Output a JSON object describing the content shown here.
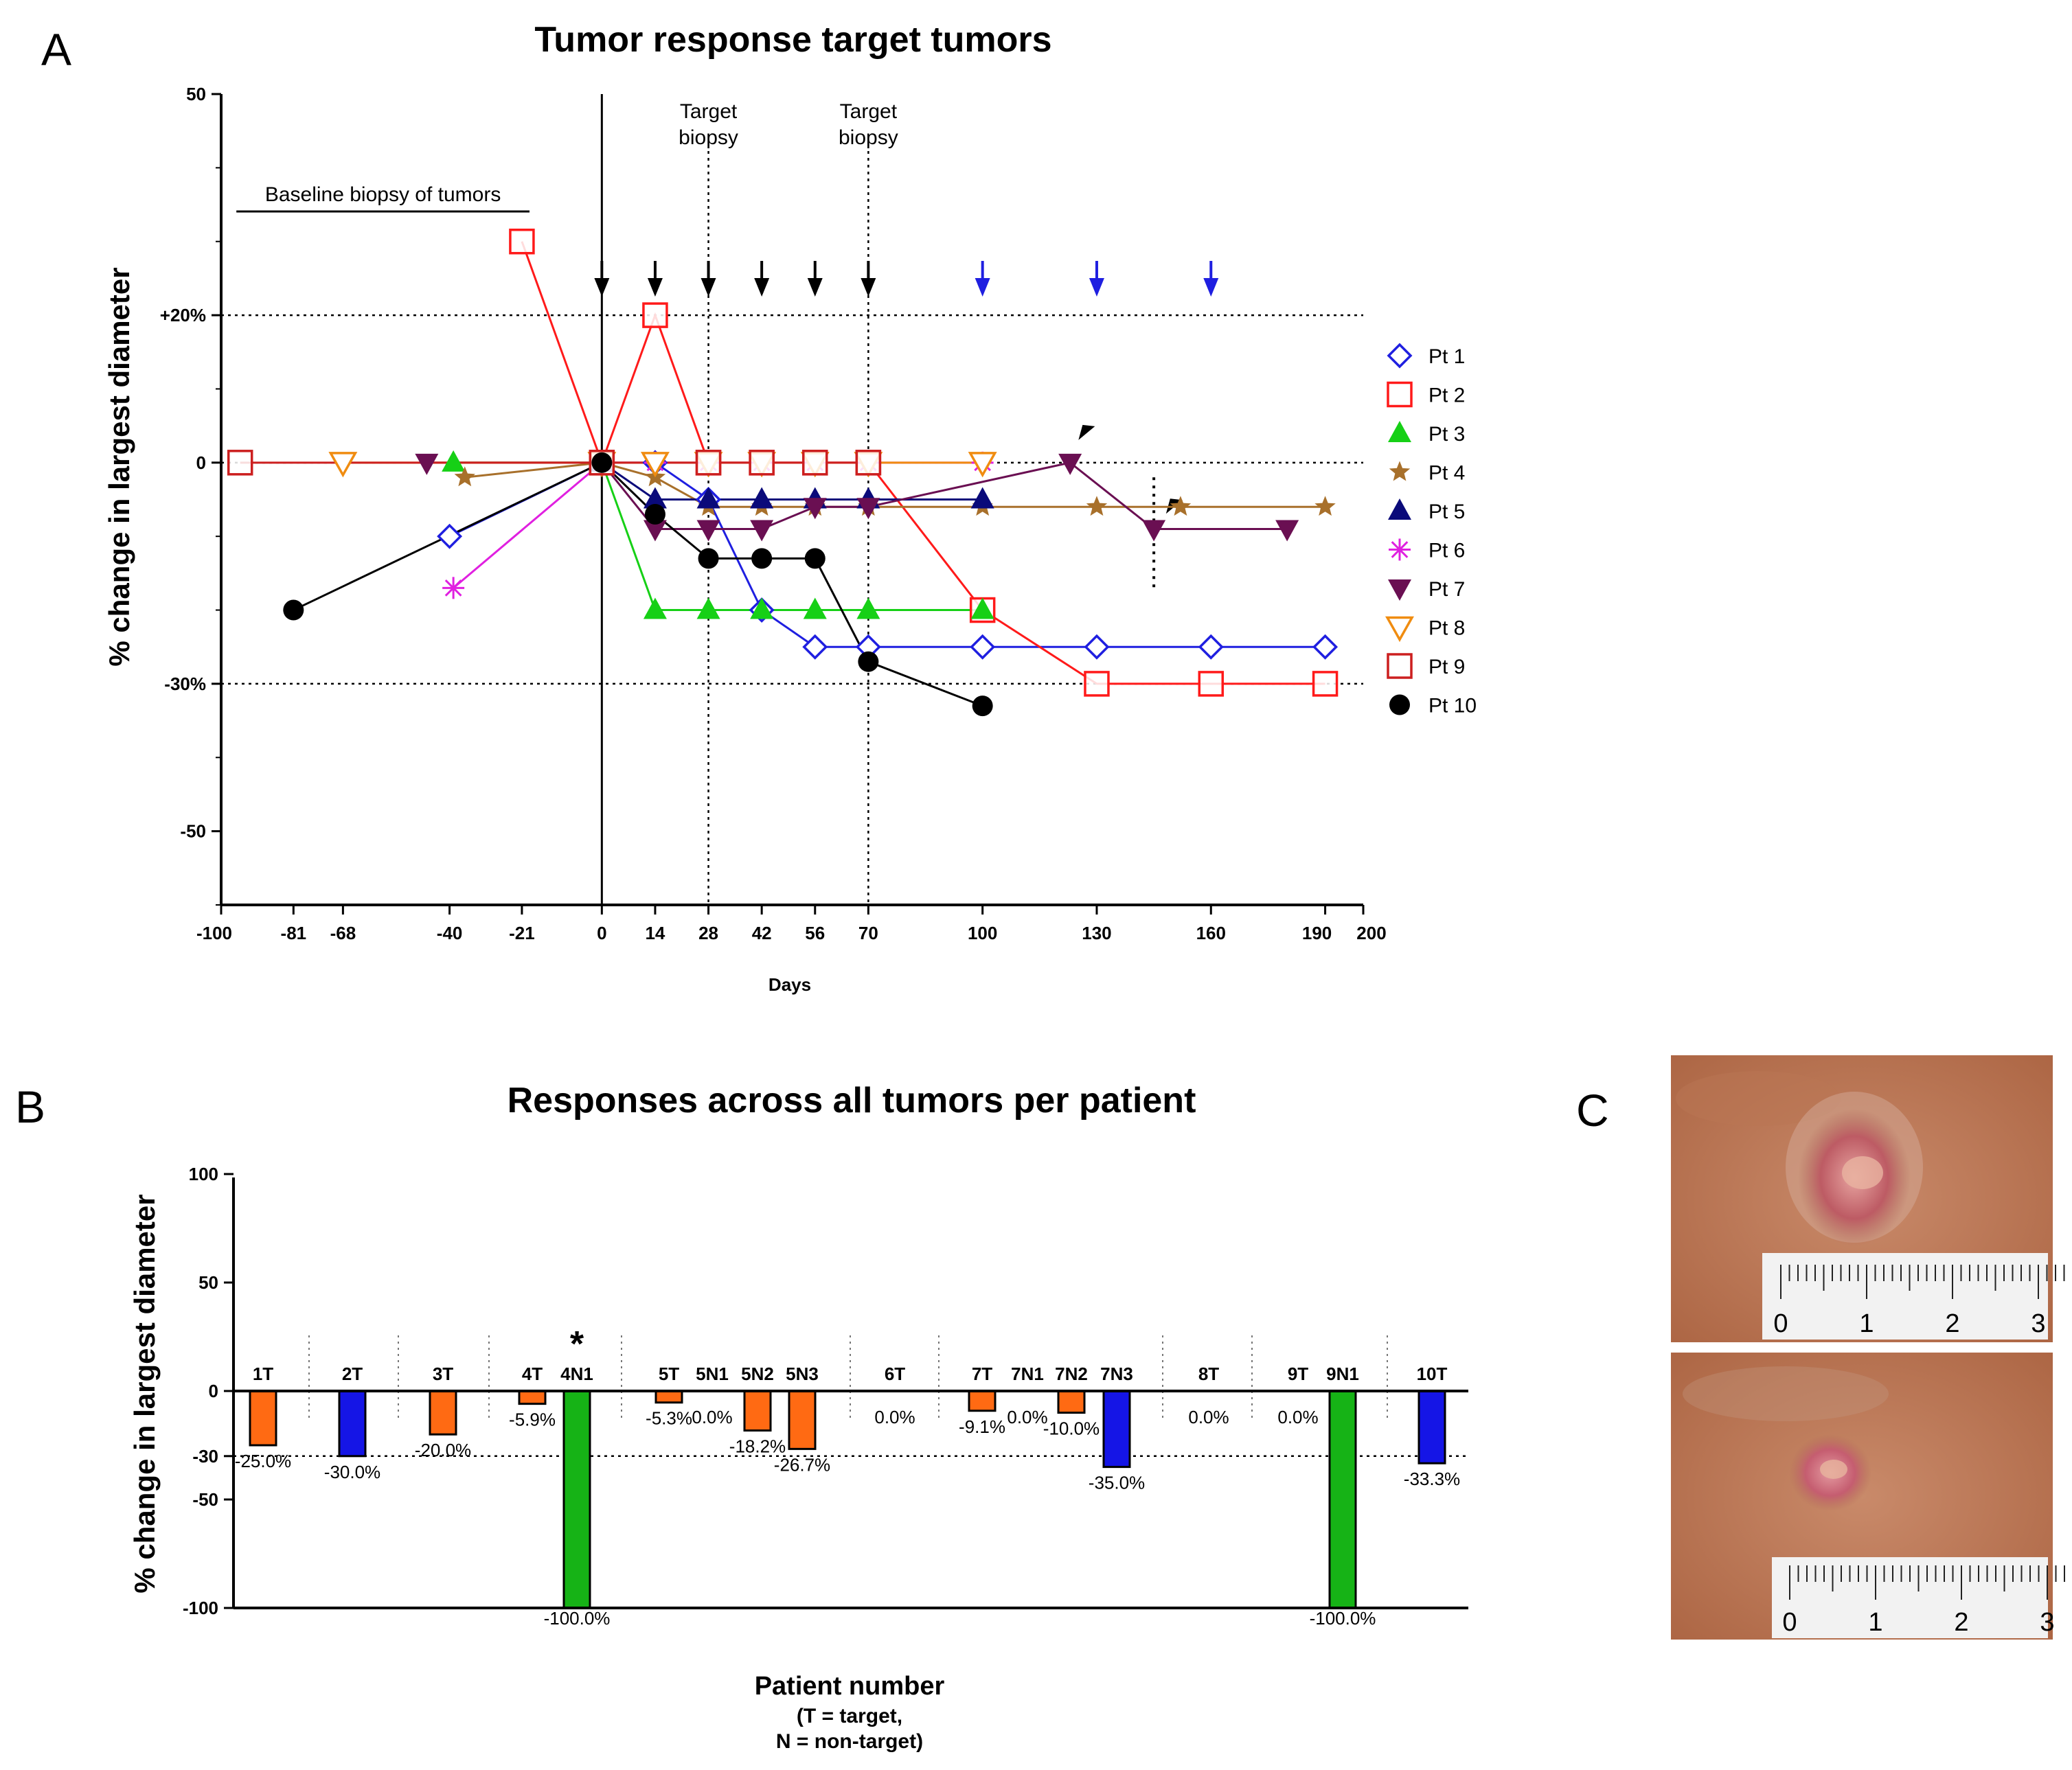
{
  "panel_letters": {
    "a": "A",
    "b": "B",
    "c": "C"
  },
  "chart_data": [
    {
      "type": "line",
      "title": "Tumor response target tumors",
      "xlabel": "Days",
      "ylabel": "% change in largest diameter",
      "xlim": [
        -100,
        200
      ],
      "ylim": [
        -60,
        50
      ],
      "x_ticks": [
        -100,
        -81,
        -68,
        -40,
        -21,
        0,
        14,
        28,
        42,
        56,
        70,
        100,
        130,
        160,
        190,
        200
      ],
      "y_tick_labels": [
        {
          "value": 50,
          "label": "50"
        },
        {
          "value": 20,
          "label": "+20%"
        },
        {
          "value": 0,
          "label": "0"
        },
        {
          "value": -30,
          "label": "-30%"
        },
        {
          "value": -50,
          "label": "-50"
        }
      ],
      "reference_lines_y": [
        20,
        0,
        -30
      ],
      "reference_lines_x": [
        28,
        70
      ],
      "annotations": {
        "baseline_biopsy": {
          "text": "Baseline biopsy of tumors",
          "x_from": -96,
          "x_to": -19
        },
        "target_biopsy": [
          {
            "line1": "Target",
            "line2": "biopsy",
            "x": 28
          },
          {
            "line1": "Target",
            "line2": "biopsy",
            "x": 70
          }
        ]
      },
      "black_arrows_days": [
        0,
        14,
        28,
        42,
        56,
        70
      ],
      "blue_arrows_days": [
        100,
        130,
        160
      ],
      "series": [
        {
          "name": "Pt 1",
          "color": "#1f1fe0",
          "marker": "diamond-open",
          "points": [
            [
              -40,
              -10
            ],
            [
              0,
              0
            ],
            [
              14,
              0
            ],
            [
              28,
              -5
            ],
            [
              42,
              -20
            ],
            [
              56,
              -25
            ],
            [
              70,
              -25
            ],
            [
              100,
              -25
            ],
            [
              130,
              -25
            ],
            [
              160,
              -25
            ],
            [
              190,
              -25
            ]
          ]
        },
        {
          "name": "Pt 2",
          "color": "#ff1a1a",
          "marker": "square-open",
          "points": [
            [
              -21,
              30
            ],
            [
              0,
              0
            ],
            [
              14,
              20
            ],
            [
              28,
              0
            ],
            [
              42,
              0
            ],
            [
              56,
              0
            ],
            [
              70,
              0
            ],
            [
              100,
              -20
            ],
            [
              130,
              -30
            ],
            [
              160,
              -30
            ],
            [
              190,
              -30
            ]
          ]
        },
        {
          "name": "Pt 3",
          "color": "#16d016",
          "marker": "triangle-up",
          "points": [
            [
              -39,
              0
            ],
            [
              0,
              0
            ],
            [
              14,
              -20
            ],
            [
              28,
              -20
            ],
            [
              42,
              -20
            ],
            [
              56,
              -20
            ],
            [
              70,
              -20
            ],
            [
              100,
              -20
            ]
          ]
        },
        {
          "name": "Pt 4",
          "color": "#a8702b",
          "marker": "star",
          "points": [
            [
              -36,
              -2
            ],
            [
              0,
              0
            ],
            [
              14,
              -2
            ],
            [
              28,
              -6
            ],
            [
              42,
              -6
            ],
            [
              56,
              -6
            ],
            [
              70,
              -6
            ],
            [
              100,
              -6
            ],
            [
              130,
              -6
            ],
            [
              152,
              -6
            ],
            [
              190,
              -6
            ]
          ]
        },
        {
          "name": "Pt 5",
          "color": "#0a0a7a",
          "marker": "triangle-up",
          "points": [
            [
              0,
              0
            ],
            [
              14,
              -5
            ],
            [
              28,
              -5
            ],
            [
              42,
              -5
            ],
            [
              56,
              -5
            ],
            [
              70,
              -5
            ],
            [
              100,
              -5
            ]
          ]
        },
        {
          "name": "Pt 6",
          "color": "#e020e0",
          "marker": "asterisk",
          "points": [
            [
              -39,
              -17
            ],
            [
              0,
              0
            ],
            [
              14,
              0
            ],
            [
              28,
              0
            ],
            [
              42,
              0
            ],
            [
              56,
              0
            ],
            [
              70,
              0
            ],
            [
              100,
              0
            ]
          ]
        },
        {
          "name": "Pt 7",
          "color": "#6a0f52",
          "marker": "triangle-down",
          "points": [
            [
              -46,
              0
            ],
            [
              0,
              0
            ],
            [
              14,
              -9
            ],
            [
              28,
              -9
            ],
            [
              42,
              -9
            ],
            [
              56,
              -6
            ],
            [
              70,
              -6
            ],
            [
              123,
              0
            ],
            [
              145,
              -9
            ],
            [
              180,
              -9
            ]
          ]
        },
        {
          "name": "Pt 8",
          "color": "#f08c10",
          "marker": "triangle-down-open",
          "points": [
            [
              -68,
              0
            ],
            [
              0,
              0
            ],
            [
              14,
              0
            ],
            [
              28,
              0
            ],
            [
              42,
              0
            ],
            [
              56,
              0
            ],
            [
              70,
              0
            ],
            [
              100,
              0
            ]
          ]
        },
        {
          "name": "Pt 9",
          "color": "#cc1f1f",
          "marker": "square-open",
          "points": [
            [
              -95,
              0
            ],
            [
              0,
              0
            ],
            [
              28,
              0
            ],
            [
              42,
              0
            ],
            [
              56,
              0
            ],
            [
              70,
              0
            ]
          ]
        },
        {
          "name": "Pt 10",
          "color": "#000000",
          "marker": "circle",
          "points": [
            [
              -81,
              -20
            ],
            [
              0,
              0
            ],
            [
              14,
              -7
            ],
            [
              28,
              -13
            ],
            [
              42,
              -13
            ],
            [
              56,
              -13
            ],
            [
              70,
              -27
            ],
            [
              100,
              -33
            ]
          ]
        }
      ],
      "triangle_markers": [
        {
          "x": 127,
          "y": 4
        },
        {
          "x": 150,
          "y": -6
        }
      ]
    },
    {
      "type": "bar",
      "title": "Responses across all tumors per patient",
      "xlabel": "Patient number",
      "xlabel_sub1": "(T = target,",
      "xlabel_sub2": "N = non-target)",
      "ylabel": "% change in largest diameter",
      "ylim": [
        -100,
        100
      ],
      "y_ticks": [
        100,
        50,
        0,
        -30,
        -50,
        -100
      ],
      "reference_lines_y": [
        -30,
        -100
      ],
      "star_label": "*",
      "star_over": "4N1",
      "colors": {
        "orange": "#ff6a13",
        "blue": "#1515e6",
        "green": "#16b316"
      },
      "bars": [
        {
          "label": "1T",
          "value": -25.0,
          "text": "-25.0%",
          "color": "orange"
        },
        {
          "label": "2T",
          "value": -30.0,
          "text": "-30.0%",
          "color": "blue"
        },
        {
          "label": "3T",
          "value": -20.0,
          "text": "-20.0%",
          "color": "orange"
        },
        {
          "label": "4T",
          "value": -5.9,
          "text": "-5.9%",
          "color": "orange"
        },
        {
          "label": "4N1",
          "value": -100.0,
          "text": "-100.0%",
          "color": "green"
        },
        {
          "label": "5T",
          "value": -5.3,
          "text": "-5.3%",
          "color": "orange"
        },
        {
          "label": "5N1",
          "value": 0.0,
          "text": "0.0%",
          "color": "orange"
        },
        {
          "label": "5N2",
          "value": -18.2,
          "text": "-18.2%",
          "color": "orange"
        },
        {
          "label": "5N3",
          "value": -26.7,
          "text": "-26.7%",
          "color": "orange"
        },
        {
          "label": "6T",
          "value": 0.0,
          "text": "0.0%",
          "color": "orange"
        },
        {
          "label": "7T",
          "value": -9.1,
          "text": "-9.1%",
          "color": "orange"
        },
        {
          "label": "7N1",
          "value": 0.0,
          "text": "0.0%",
          "color": "orange"
        },
        {
          "label": "7N2",
          "value": -10.0,
          "text": "-10.0%",
          "color": "orange"
        },
        {
          "label": "7N3",
          "value": -35.0,
          "text": "-35.0%",
          "color": "blue"
        },
        {
          "label": "8T",
          "value": 0.0,
          "text": "0.0%",
          "color": "orange"
        },
        {
          "label": "9T",
          "value": 0.0,
          "text": "0.0%",
          "color": "orange"
        },
        {
          "label": "9N1",
          "value": -100.0,
          "text": "-100.0%",
          "color": "green"
        },
        {
          "label": "10T",
          "value": -33.3,
          "text": "-33.3%",
          "color": "blue"
        }
      ]
    }
  ],
  "panel_c": {
    "ruler_labels": [
      "0",
      "1",
      "2",
      "3"
    ],
    "photos": [
      "before treatment lesion photo",
      "after treatment lesion photo"
    ]
  }
}
